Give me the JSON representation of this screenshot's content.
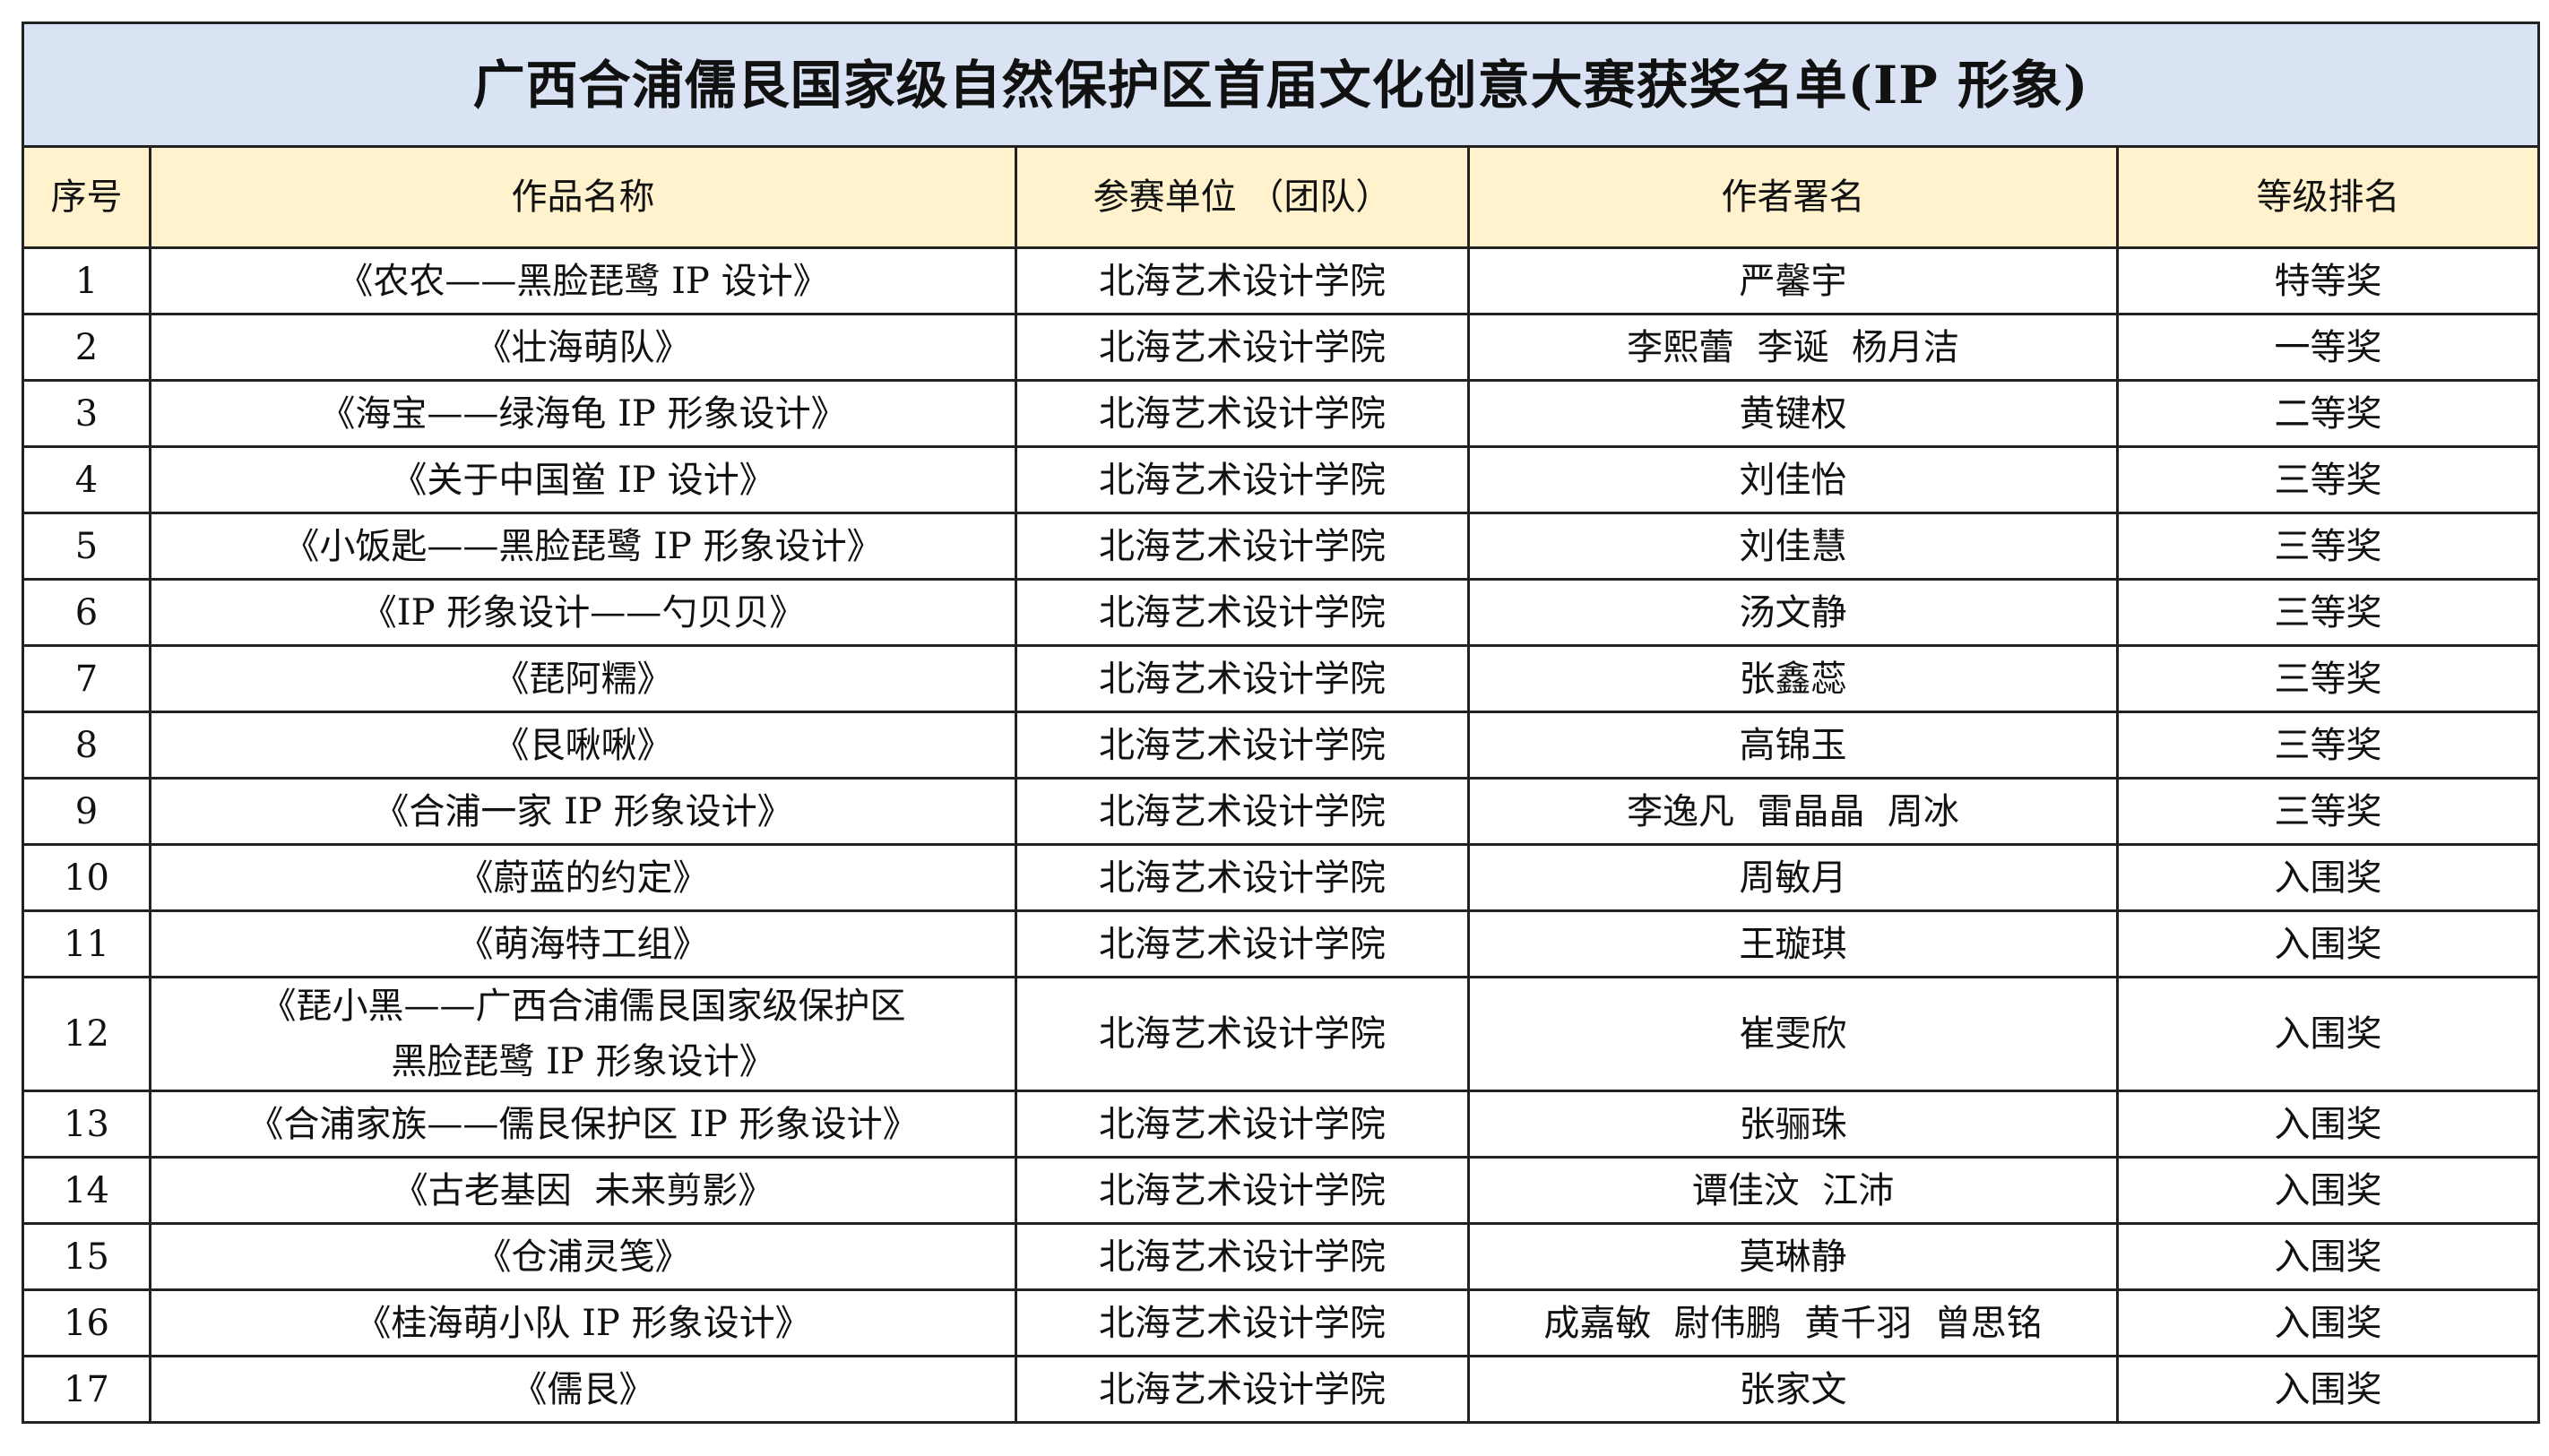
{
  "title": "广西合浦儒艮国家级自然保护区首届文化创意大赛获奖名单(IP 形象)",
  "colors": {
    "title_bg": "#dae3f3",
    "header_bg": "#fff2cc",
    "border": "#222222"
  },
  "columns": [
    "序号",
    "作品名称",
    "参赛单位 （团队）",
    "作者署名",
    "等级排名"
  ],
  "rows": [
    {
      "no": "1",
      "work": "《农农——黑脸琵鹭 IP 设计》",
      "unit": "北海艺术设计学院",
      "author": "严馨宇",
      "rank": "特等奖"
    },
    {
      "no": "2",
      "work": "《壮海萌队》",
      "unit": "北海艺术设计学院",
      "author": "李熙蕾  李诞  杨月洁",
      "rank": "一等奖"
    },
    {
      "no": "3",
      "work": "《海宝——绿海龟 IP 形象设计》",
      "unit": "北海艺术设计学院",
      "author": "黄键权",
      "rank": "二等奖"
    },
    {
      "no": "4",
      "work": "《关于中国鲎 IP 设计》",
      "unit": "北海艺术设计学院",
      "author": "刘佳怡",
      "rank": "三等奖"
    },
    {
      "no": "5",
      "work": "《小饭匙——黑脸琵鹭 IP 形象设计》",
      "unit": "北海艺术设计学院",
      "author": "刘佳慧",
      "rank": "三等奖"
    },
    {
      "no": "6",
      "work": "《IP 形象设计——勺贝贝》",
      "unit": "北海艺术设计学院",
      "author": "汤文静",
      "rank": "三等奖"
    },
    {
      "no": "7",
      "work": "《琵阿糯》",
      "unit": "北海艺术设计学院",
      "author": "张鑫蕊",
      "rank": "三等奖"
    },
    {
      "no": "8",
      "work": "《艮啾啾》",
      "unit": "北海艺术设计学院",
      "author": "高锦玉",
      "rank": "三等奖"
    },
    {
      "no": "9",
      "work": "《合浦一家 IP 形象设计》",
      "unit": "北海艺术设计学院",
      "author": "李逸凡  雷晶晶  周冰",
      "rank": "三等奖"
    },
    {
      "no": "10",
      "work": "《蔚蓝的约定》",
      "unit": "北海艺术设计学院",
      "author": "周敏月",
      "rank": "入围奖"
    },
    {
      "no": "11",
      "work": "《萌海特工组》",
      "unit": "北海艺术设计学院",
      "author": "王璇琪",
      "rank": "入围奖"
    },
    {
      "no": "12",
      "work": "《琵小黑——广西合浦儒艮国家级保护区\n黑脸琵鹭 IP 形象设计》",
      "unit": "北海艺术设计学院",
      "author": "崔雯欣",
      "rank": "入围奖"
    },
    {
      "no": "13",
      "work": "《合浦家族——儒艮保护区 IP 形象设计》",
      "unit": "北海艺术设计学院",
      "author": "张骊珠",
      "rank": "入围奖"
    },
    {
      "no": "14",
      "work": "《古老基因  未来剪影》",
      "unit": "北海艺术设计学院",
      "author": "谭佳汶  江沛",
      "rank": "入围奖"
    },
    {
      "no": "15",
      "work": "《仓浦灵笺》",
      "unit": "北海艺术设计学院",
      "author": "莫琳静",
      "rank": "入围奖"
    },
    {
      "no": "16",
      "work": "《桂海萌小队 IP 形象设计》",
      "unit": "北海艺术设计学院",
      "author": "成嘉敏  尉伟鹏  黄千羽  曾思铭",
      "rank": "入围奖"
    },
    {
      "no": "17",
      "work": "《儒艮》",
      "unit": "北海艺术设计学院",
      "author": "张家文",
      "rank": "入围奖"
    }
  ]
}
